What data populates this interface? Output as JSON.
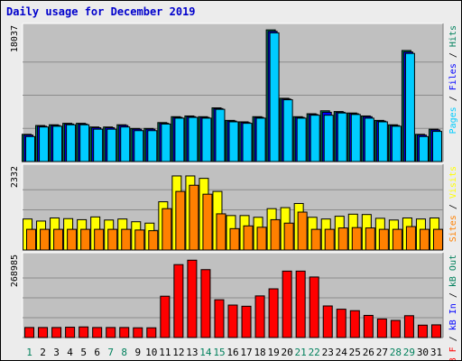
{
  "chart_data": {
    "type": "bar",
    "title": "Daily usage for December 2019",
    "days": [
      "1",
      "2",
      "3",
      "4",
      "5",
      "6",
      "7",
      "8",
      "9",
      "10",
      "11",
      "12",
      "13",
      "14",
      "15",
      "16",
      "17",
      "18",
      "19",
      "20",
      "21",
      "22",
      "23",
      "24",
      "25",
      "26",
      "27",
      "28",
      "29",
      "30",
      "31"
    ],
    "weekend_days": [
      "1",
      "7",
      "8",
      "14",
      "15",
      "21",
      "22",
      "28",
      "29"
    ],
    "panels": [
      {
        "name": "hits-pages-files",
        "max_label": "18037",
        "ymax": 18037,
        "legend": [
          {
            "text": "Pages",
            "color": "#00ccff"
          },
          {
            "text": "Files",
            "color": "#0000ff"
          },
          {
            "text": "Hits",
            "color": "#00805c"
          }
        ],
        "series": [
          {
            "name": "Hits",
            "color": "#00805c",
            "values": [
              3700,
              4900,
              5000,
              5200,
              5200,
              4700,
              4700,
              5000,
              4500,
              4500,
              5300,
              6100,
              6200,
              6100,
              7300,
              5600,
              5400,
              6100,
              17900,
              8600,
              6100,
              6500,
              6900,
              6800,
              6600,
              6200,
              5600,
              5000,
              15100,
              3700,
              4400
            ]
          },
          {
            "name": "Files",
            "color": "#0000ff",
            "values": [
              3600,
              4800,
              4900,
              5100,
              5100,
              4600,
              4600,
              4900,
              4400,
              4400,
              5200,
              6000,
              6100,
              6000,
              7200,
              5500,
              5300,
              6000,
              17700,
              8500,
              6000,
              6400,
              6700,
              6700,
              6500,
              6100,
              5500,
              4900,
              14900,
              3600,
              4300
            ]
          },
          {
            "name": "Pages",
            "color": "#00ccff",
            "values": [
              3400,
              4700,
              4800,
              5000,
              5000,
              4400,
              4400,
              4700,
              4200,
              4200,
              5100,
              5900,
              6000,
              5900,
              7100,
              5400,
              5200,
              5900,
              17500,
              8400,
              5900,
              6300,
              6300,
              6600,
              6400,
              5900,
              5400,
              4800,
              14700,
              3400,
              4100
            ]
          }
        ]
      },
      {
        "name": "visits-sites",
        "max_label": "2332",
        "ymax": 2332,
        "legend": [
          {
            "text": "Sites",
            "color": "#ff8000"
          },
          {
            "text": "Visits",
            "color": "#ffff00"
          }
        ],
        "series": [
          {
            "name": "Visits",
            "color": "#ffff00",
            "values": [
              900,
              840,
              930,
              910,
              880,
              960,
              870,
              900,
              820,
              780,
              1400,
              2150,
              2150,
              2080,
              1700,
              1000,
              1000,
              950,
              1200,
              1230,
              1350,
              950,
              900,
              980,
              1040,
              1030,
              920,
              870,
              930,
              900,
              930
            ]
          },
          {
            "name": "Sites",
            "color": "#ff8000",
            "values": [
              600,
              600,
              600,
              600,
              600,
              600,
              600,
              600,
              580,
              560,
              1200,
              1700,
              1880,
              1620,
              1050,
              620,
              700,
              660,
              880,
              780,
              1100,
              600,
              600,
              640,
              650,
              640,
              600,
              600,
              680,
              600,
              600
            ]
          }
        ]
      },
      {
        "name": "kb",
        "max_label": "268985",
        "ymax": 268985,
        "legend": [
          {
            "text": "kB F",
            "color": "#ff0000"
          },
          {
            "text": "kB In",
            "color": "#0000ff"
          },
          {
            "text": "kB Out",
            "color": "#00805c"
          }
        ],
        "series": [
          {
            "name": "kB F",
            "color": "#ff0000",
            "values": [
              34000,
              34000,
              34000,
              35000,
              36000,
              34000,
              34000,
              34000,
              33000,
              33000,
              140000,
              247000,
              262000,
              230000,
              128000,
              110000,
              106000,
              141000,
              165000,
              225000,
              225000,
              205000,
              107000,
              96000,
              91000,
              75000,
              63000,
              58000,
              74000,
              42000,
              43000
            ]
          }
        ]
      }
    ]
  }
}
